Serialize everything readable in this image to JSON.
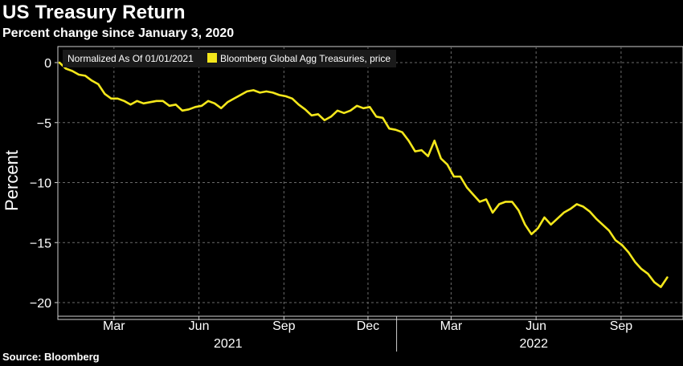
{
  "header": {
    "title": "US Treasury Return",
    "subtitle": "Percent change since January 3, 2020"
  },
  "footer": {
    "source": "Source: Bloomberg"
  },
  "legend": {
    "note": "Normalized As Of 01/01/2021",
    "series_label": "Bloomberg Global Agg Treasuries, price"
  },
  "chart_data": {
    "type": "line",
    "title": "US Treasury Return",
    "subtitle": "Percent change since January 3, 2020",
    "ylabel": "Percent",
    "xlabel": "",
    "ylim": [
      -21,
      2
    ],
    "xlim": [
      "2021-01-01",
      "2022-10-25"
    ],
    "y_ticks": [
      0,
      -5,
      -10,
      -15,
      -20
    ],
    "x_ticks": [
      {
        "date": "2021-03-01",
        "label": "Mar"
      },
      {
        "date": "2021-06-01",
        "label": "Jun"
      },
      {
        "date": "2021-09-01",
        "label": "Sep"
      },
      {
        "date": "2021-12-01",
        "label": "Dec"
      },
      {
        "date": "2022-03-01",
        "label": "Mar"
      },
      {
        "date": "2022-06-01",
        "label": "Jun"
      },
      {
        "date": "2022-09-01",
        "label": "Sep"
      }
    ],
    "year_labels": [
      {
        "label": "2021",
        "from": "2021-01-01",
        "to": "2022-01-01"
      },
      {
        "label": "2022",
        "from": "2022-01-01",
        "to": "2022-10-25"
      }
    ],
    "grid": true,
    "legend_position": "top-left",
    "series": [
      {
        "name": "Bloomberg Global Agg Treasuries, price",
        "color": "#F4E71B",
        "points": [
          [
            "2021-01-01",
            0.0
          ],
          [
            "2021-01-08",
            -0.5
          ],
          [
            "2021-01-15",
            -0.7
          ],
          [
            "2021-01-22",
            -1.0
          ],
          [
            "2021-01-29",
            -1.1
          ],
          [
            "2021-02-05",
            -1.5
          ],
          [
            "2021-02-12",
            -1.8
          ],
          [
            "2021-02-19",
            -2.6
          ],
          [
            "2021-02-26",
            -3.0
          ],
          [
            "2021-03-05",
            -3.0
          ],
          [
            "2021-03-12",
            -3.2
          ],
          [
            "2021-03-19",
            -3.5
          ],
          [
            "2021-03-26",
            -3.2
          ],
          [
            "2021-04-02",
            -3.4
          ],
          [
            "2021-04-09",
            -3.3
          ],
          [
            "2021-04-16",
            -3.2
          ],
          [
            "2021-04-23",
            -3.2
          ],
          [
            "2021-04-30",
            -3.6
          ],
          [
            "2021-05-07",
            -3.5
          ],
          [
            "2021-05-14",
            -4.0
          ],
          [
            "2021-05-21",
            -3.9
          ],
          [
            "2021-05-28",
            -3.7
          ],
          [
            "2021-06-04",
            -3.6
          ],
          [
            "2021-06-11",
            -3.2
          ],
          [
            "2021-06-18",
            -3.4
          ],
          [
            "2021-06-25",
            -3.8
          ],
          [
            "2021-07-02",
            -3.3
          ],
          [
            "2021-07-09",
            -3.0
          ],
          [
            "2021-07-16",
            -2.7
          ],
          [
            "2021-07-23",
            -2.4
          ],
          [
            "2021-07-30",
            -2.3
          ],
          [
            "2021-08-06",
            -2.5
          ],
          [
            "2021-08-13",
            -2.4
          ],
          [
            "2021-08-20",
            -2.5
          ],
          [
            "2021-08-27",
            -2.7
          ],
          [
            "2021-09-03",
            -2.8
          ],
          [
            "2021-09-10",
            -3.0
          ],
          [
            "2021-09-17",
            -3.5
          ],
          [
            "2021-09-24",
            -3.9
          ],
          [
            "2021-10-01",
            -4.4
          ],
          [
            "2021-10-08",
            -4.3
          ],
          [
            "2021-10-15",
            -4.8
          ],
          [
            "2021-10-22",
            -4.5
          ],
          [
            "2021-10-29",
            -4.0
          ],
          [
            "2021-11-05",
            -4.2
          ],
          [
            "2021-11-12",
            -4.0
          ],
          [
            "2021-11-19",
            -3.6
          ],
          [
            "2021-11-26",
            -3.8
          ],
          [
            "2021-12-03",
            -3.7
          ],
          [
            "2021-12-10",
            -4.5
          ],
          [
            "2021-12-17",
            -4.6
          ],
          [
            "2021-12-24",
            -5.5
          ],
          [
            "2021-12-31",
            -5.6
          ],
          [
            "2022-01-07",
            -5.8
          ],
          [
            "2022-01-14",
            -6.5
          ],
          [
            "2022-01-21",
            -7.4
          ],
          [
            "2022-01-28",
            -7.3
          ],
          [
            "2022-02-04",
            -7.8
          ],
          [
            "2022-02-11",
            -6.5
          ],
          [
            "2022-02-18",
            -8.0
          ],
          [
            "2022-02-25",
            -8.5
          ],
          [
            "2022-03-04",
            -9.5
          ],
          [
            "2022-03-11",
            -9.5
          ],
          [
            "2022-03-18",
            -10.4
          ],
          [
            "2022-03-25",
            -11.0
          ],
          [
            "2022-04-01",
            -11.6
          ],
          [
            "2022-04-08",
            -11.4
          ],
          [
            "2022-04-15",
            -12.5
          ],
          [
            "2022-04-22",
            -11.8
          ],
          [
            "2022-04-29",
            -11.6
          ],
          [
            "2022-05-06",
            -11.6
          ],
          [
            "2022-05-13",
            -12.3
          ],
          [
            "2022-05-20",
            -13.5
          ],
          [
            "2022-05-27",
            -14.3
          ],
          [
            "2022-06-03",
            -13.8
          ],
          [
            "2022-06-10",
            -12.9
          ],
          [
            "2022-06-17",
            -13.5
          ],
          [
            "2022-06-24",
            -13.0
          ],
          [
            "2022-07-01",
            -12.5
          ],
          [
            "2022-07-08",
            -12.2
          ],
          [
            "2022-07-15",
            -11.8
          ],
          [
            "2022-07-22",
            -12.0
          ],
          [
            "2022-07-29",
            -12.4
          ],
          [
            "2022-08-05",
            -13.0
          ],
          [
            "2022-08-12",
            -13.5
          ],
          [
            "2022-08-19",
            -14.0
          ],
          [
            "2022-08-26",
            -14.8
          ],
          [
            "2022-09-02",
            -15.2
          ],
          [
            "2022-09-09",
            -15.8
          ],
          [
            "2022-09-16",
            -16.6
          ],
          [
            "2022-09-23",
            -17.2
          ],
          [
            "2022-09-30",
            -17.6
          ],
          [
            "2022-10-07",
            -18.3
          ],
          [
            "2022-10-14",
            -18.7
          ],
          [
            "2022-10-21",
            -17.9
          ]
        ]
      }
    ]
  }
}
